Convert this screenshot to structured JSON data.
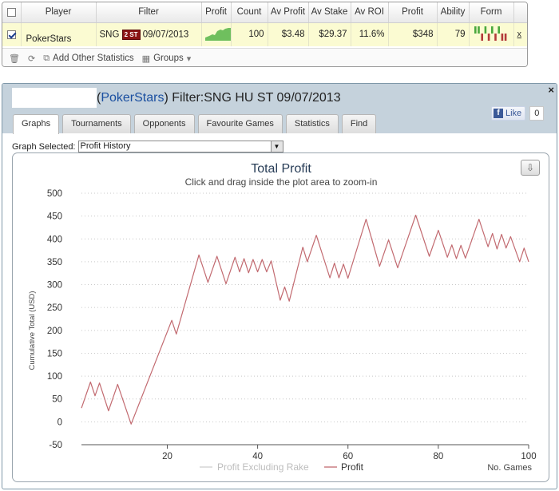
{
  "stats": {
    "columns": [
      "",
      "Player",
      "Filter",
      "Profit",
      "Count",
      "Av Profit",
      "Av Stake",
      "Av ROI",
      "Profit",
      "Ability",
      "Form",
      ""
    ],
    "row": {
      "player": "PokerStars",
      "filter_type": "SNG",
      "filter_badge": "2 ST",
      "filter_date": "09/07/2013",
      "count": "100",
      "av_profit": "$3.48",
      "av_stake": "$29.37",
      "av_roi": "11.6%",
      "profit": "$348",
      "ability": "79",
      "remove": "x",
      "form": [
        1,
        1,
        0,
        1,
        0,
        1,
        0,
        1,
        0,
        0
      ]
    },
    "toolbar": {
      "add_label": "Add Other Statistics",
      "groups_label": "Groups"
    }
  },
  "detail": {
    "title_prefix": "(",
    "site": "PokerStars",
    "title_suffix": ") Filter:SNG HU ST 09/07/2013",
    "like_label": "Like",
    "like_count": "0",
    "close": "×",
    "tabs": [
      "Graphs",
      "Tournaments",
      "Opponents",
      "Favourite Games",
      "Statistics",
      "Find"
    ],
    "graph_selected_label": "Graph Selected:",
    "graph_selected_value": "Profit History"
  },
  "colors": {
    "profit_line": "#c26a70",
    "excluding_rake_line": "#cfcfcf",
    "header_bg": "#c5d2dc"
  },
  "chart_data": {
    "type": "line",
    "title": "Total Profit",
    "subtitle": "Click and drag inside the plot area to zoom-in",
    "ylabel": "Cumulative Total (USD)",
    "xlabel": "No. Games",
    "ylim": [
      -50,
      500
    ],
    "xlim": [
      1,
      100
    ],
    "yticks": [
      -50,
      0,
      50,
      100,
      150,
      200,
      250,
      300,
      350,
      400,
      450,
      500
    ],
    "xticks": [
      20,
      40,
      60,
      80,
      100
    ],
    "grid": "horizontal dotted",
    "legend_position": "bottom",
    "series": [
      {
        "name": "Profit Excluding Rake",
        "color": "#cfcfcf",
        "visible": false,
        "x": [],
        "y": []
      },
      {
        "name": "Profit",
        "color": "#c26a70",
        "visible": true,
        "x": [
          1,
          3,
          4,
          5,
          7,
          9,
          12,
          21,
          22,
          27,
          29,
          31,
          33,
          35,
          36,
          37,
          38,
          39,
          40,
          41,
          42,
          43,
          45,
          46,
          47,
          50,
          51,
          53,
          56,
          57,
          58,
          59,
          60,
          64,
          67,
          69,
          71,
          75,
          78,
          80,
          82,
          83,
          84,
          85,
          86,
          87,
          89,
          91,
          92,
          93,
          94,
          95,
          96,
          98,
          99,
          100
        ],
        "y": [
          30,
          87,
          57,
          85,
          24,
          82,
          -5,
          222,
          192,
          365,
          305,
          362,
          302,
          360,
          328,
          357,
          326,
          355,
          328,
          355,
          328,
          352,
          266,
          295,
          264,
          382,
          350,
          408,
          315,
          347,
          315,
          345,
          314,
          443,
          340,
          398,
          337,
          452,
          362,
          419,
          360,
          387,
          357,
          386,
          358,
          386,
          443,
          383,
          412,
          378,
          410,
          380,
          405,
          350,
          380,
          350
        ]
      }
    ]
  }
}
